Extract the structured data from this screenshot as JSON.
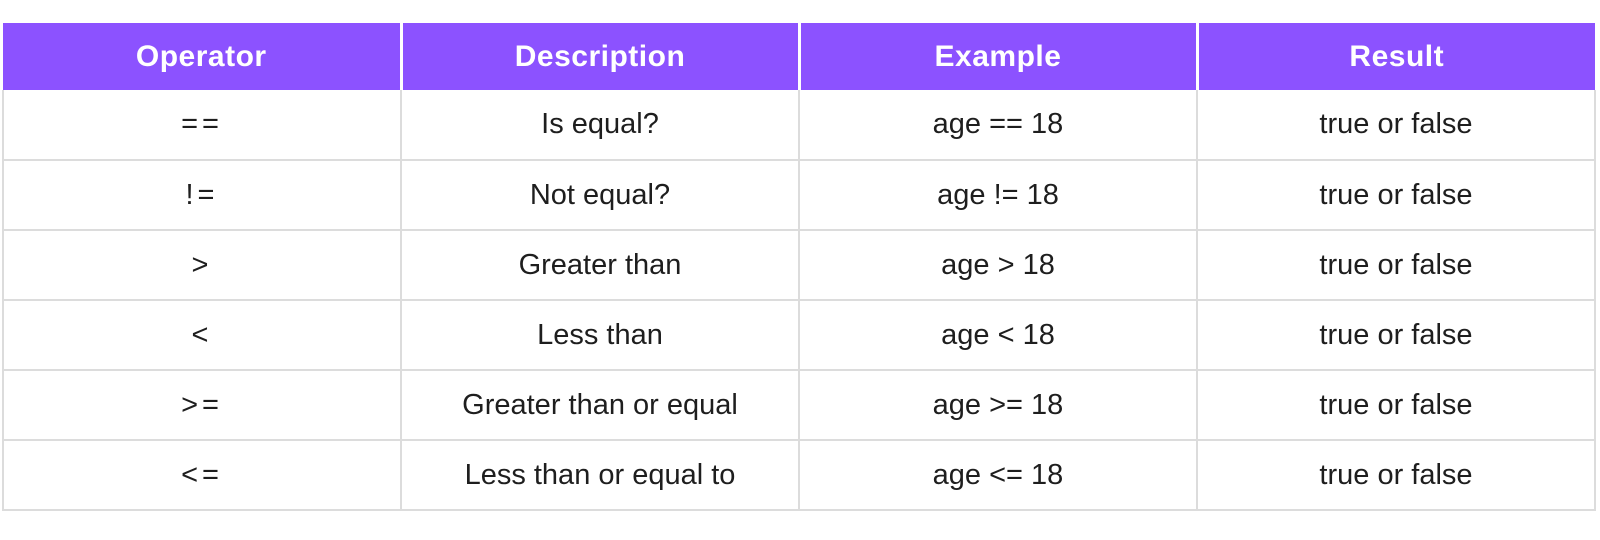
{
  "chart_data": {
    "type": "table",
    "title": "",
    "columns": [
      "Operator",
      "Description",
      "Example",
      "Result"
    ],
    "rows": [
      [
        "==",
        "Is equal?",
        "age == 18",
        "true or false"
      ],
      [
        "!=",
        "Not equal?",
        "age != 18",
        "true or false"
      ],
      [
        ">",
        "Greater than",
        "age > 18",
        "true or false"
      ],
      [
        "<",
        "Less than",
        "age < 18",
        "true or false"
      ],
      [
        ">=",
        "Greater than or equal",
        "age >= 18",
        "true or false"
      ],
      [
        "<=",
        "Less than or equal to",
        "age <= 18",
        "true or false"
      ]
    ],
    "header_bg": "#8C52FF",
    "header_text_color": "#FFFFFF",
    "body_text_color": "#1E1E1E",
    "grid_line_color": "#DCDCDC"
  }
}
